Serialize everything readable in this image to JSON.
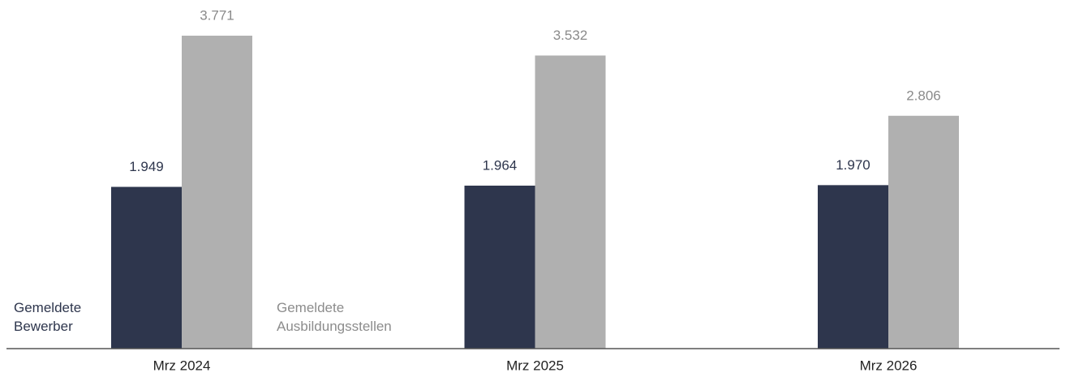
{
  "chart_data": {
    "type": "bar",
    "categories": [
      "Mrz 2024",
      "Mrz 2025",
      "Mrz 2026"
    ],
    "series": [
      {
        "name": "Gemeldete Bewerber",
        "color": "#2e364d",
        "values": [
          1949,
          1964,
          1970
        ],
        "value_labels": [
          "1.949",
          "1.964",
          "1.970"
        ]
      },
      {
        "name": "Gemeldete Ausbildungsstellen",
        "color": "#b0b0b0",
        "values": [
          3771,
          3532,
          2806
        ],
        "value_labels": [
          "3.771",
          "3.532",
          "2.806"
        ]
      }
    ]
  }
}
